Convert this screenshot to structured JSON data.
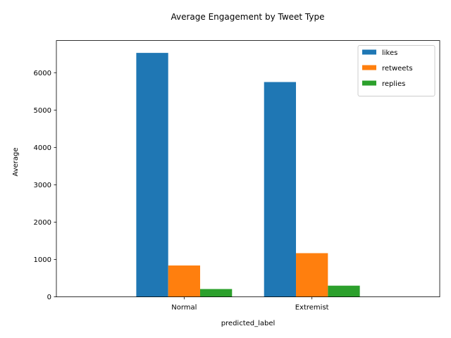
{
  "chart_data": {
    "type": "bar",
    "title": "Average Engagement by Tweet Type",
    "xlabel": "predicted_label",
    "ylabel": "Average",
    "categories": [
      "Normal",
      "Extremist"
    ],
    "series": [
      {
        "name": "likes",
        "color": "#1f77b4",
        "values": [
          6530,
          5750
        ]
      },
      {
        "name": "retweets",
        "color": "#ff7f0e",
        "values": [
          840,
          1170
        ]
      },
      {
        "name": "replies",
        "color": "#2ca02c",
        "values": [
          210,
          300
        ]
      }
    ],
    "ylim": [
      0,
      6860
    ],
    "yticks": [
      0,
      1000,
      2000,
      3000,
      4000,
      5000,
      6000
    ],
    "grid": false,
    "legend_position": "top-right"
  }
}
